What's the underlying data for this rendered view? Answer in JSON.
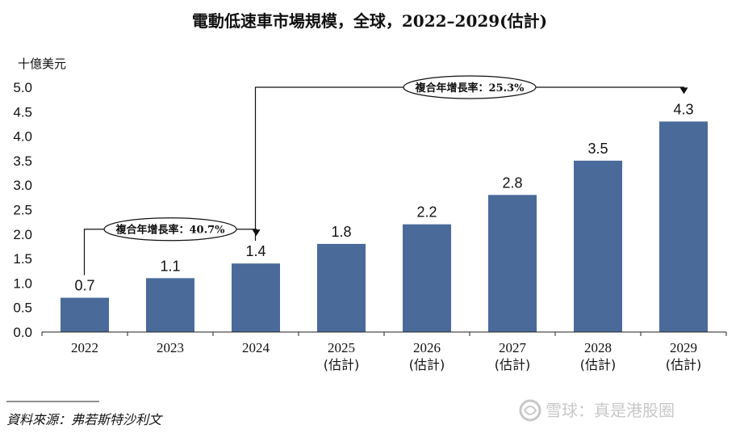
{
  "chart_data": {
    "type": "bar",
    "title": "電動低速車市場規模，全球，2022–2029(估計)",
    "ylabel": "十億美元",
    "ylim": [
      0,
      5.0
    ],
    "yticks": [
      "0.0",
      "0.5",
      "1.0",
      "1.5",
      "2.0",
      "2.5",
      "3.0",
      "3.5",
      "4.0",
      "4.5",
      "5.0"
    ],
    "categories": [
      "2022",
      "2023",
      "2024",
      "2025",
      "2026",
      "2027",
      "2028",
      "2029"
    ],
    "category_notes": [
      "",
      "",
      "",
      "(估計)",
      "(估計)",
      "(估計)",
      "(估計)",
      "(估計)"
    ],
    "values": [
      0.7,
      1.1,
      1.4,
      1.8,
      2.2,
      2.8,
      3.5,
      4.3
    ],
    "value_labels": [
      "0.7",
      "1.1",
      "1.4",
      "1.8",
      "2.2",
      "2.8",
      "3.5",
      "4.3"
    ],
    "bar_color": "#4a6a9a",
    "grid": false,
    "annotations": [
      {
        "text": "複合年增長率：40.7%",
        "from": "2022",
        "to": "2024"
      },
      {
        "text": "複合年增長率：25.3%",
        "from": "2024",
        "to": "2029"
      }
    ]
  },
  "source": "資料來源：弗若斯特沙利文",
  "watermark": "雪球：真是港股圈"
}
